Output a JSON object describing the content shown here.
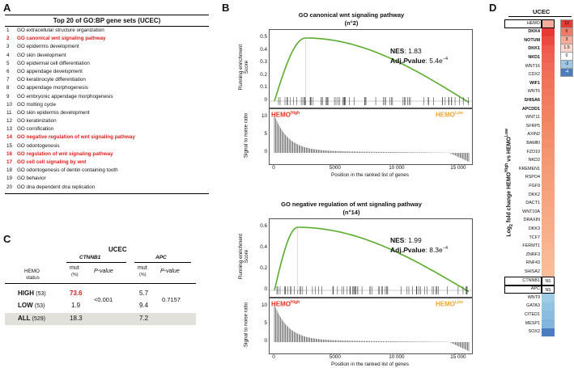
{
  "panel_labels": {
    "a": "A",
    "b": "B",
    "c": "C",
    "d": "D"
  },
  "panelA": {
    "title": "Top 20 of GO:BP gene sets (UCEC)",
    "items": [
      {
        "n": "1",
        "label": "GO extracellular structure organization",
        "hl": false
      },
      {
        "n": "2",
        "label": "GO canonical wnt signaling pathway",
        "hl": true
      },
      {
        "n": "3",
        "label": "GO epidermis development",
        "hl": false
      },
      {
        "n": "4",
        "label": "GO skin development",
        "hl": false
      },
      {
        "n": "5",
        "label": "GO epidermal cell differentiation",
        "hl": false
      },
      {
        "n": "6",
        "label": "GO appendage development",
        "hl": false
      },
      {
        "n": "7",
        "label": "GO keratinocyte differentiation",
        "hl": false
      },
      {
        "n": "8",
        "label": "GO appendage morphogenesis",
        "hl": false
      },
      {
        "n": "9",
        "label": "GO embryonic appendage morphogenesis",
        "hl": false
      },
      {
        "n": "10",
        "label": "GO molting cycle",
        "hl": false
      },
      {
        "n": "11",
        "label": "GO skin epidermis development",
        "hl": false
      },
      {
        "n": "12",
        "label": "GO keratinization",
        "hl": false
      },
      {
        "n": "13",
        "label": "GO cornification",
        "hl": false
      },
      {
        "n": "14",
        "label": "GO negative regulation of wnt signaling pathway",
        "hl": true
      },
      {
        "n": "15",
        "label": "GO odontogenesis",
        "hl": false
      },
      {
        "n": "16",
        "label": "GO regulation of wnt signaling pathway",
        "hl": true
      },
      {
        "n": "17",
        "label": "GO cell cell signaling by wnt",
        "hl": true
      },
      {
        "n": "18",
        "label": "GO odontogenesis of dentin containing tooth",
        "hl": false
      },
      {
        "n": "19",
        "label": "GO behavior",
        "hl": false
      },
      {
        "n": "20",
        "label": "GO dna dependent dna replication",
        "hl": false
      }
    ]
  },
  "panelC": {
    "title": "UCEC",
    "gene1": "CTNNB1",
    "gene2": "APC",
    "status_l1": "HEMO",
    "status_l2": "status",
    "mut": "mut",
    "pct": "(%)",
    "pvalue": "P-value",
    "rows": [
      {
        "label": "HIGH",
        "n": "(53)",
        "mut1": "73.6",
        "mut2": "5.7"
      },
      {
        "label": "LOW",
        "n": "(53)",
        "mut1": "1.9",
        "mut2": "9.4"
      },
      {
        "label": "ALL",
        "n": "(529)",
        "mut1": "18.3",
        "mut2": "7.2"
      }
    ],
    "p1": "<0.001",
    "p2": "0.7157"
  },
  "panelB": {
    "ylabel_es": [
      "Running enrichment",
      "Score"
    ],
    "ylabel_snr": "Signal to noise ratio",
    "xlabel": "Position in the ranked list of genes",
    "hemo_high": "HEMO",
    "hemo_low": "HEMO",
    "sup_high": "High",
    "sup_low": "Low",
    "xticks": [
      "0",
      "5000",
      "10 000",
      "15 000"
    ],
    "snr_ticks": [
      "10",
      "5",
      "0"
    ],
    "plots": [
      {
        "title": "GO canonical wnt signaling pathway",
        "subtitle": "(n°2)",
        "nes_label": "NES",
        "nes": "1.83",
        "adj_label": "Adj.",
        "p_italic": "P",
        "adj_tail": "value",
        "adj_p": "5.4e",
        "adj_exp": "−4",
        "es_ticks": [
          "0.5",
          "0.4",
          "0.3",
          "0.2",
          "0.1",
          "0"
        ]
      },
      {
        "title": "GO negative regulation of wnt signaling pathway",
        "subtitle": "(n°14)",
        "nes_label": "NES",
        "nes": "1.99",
        "adj_label": "Adj.",
        "p_italic": "P",
        "adj_tail": "value",
        "adj_p": "8.3e",
        "adj_exp": "−4",
        "es_ticks": [
          "0.6",
          "0.4",
          "0.2",
          "0"
        ]
      }
    ]
  },
  "panelD": {
    "title": "UCEC",
    "ylabel_pre": "Log",
    "ylabel_sub": "2",
    "ylabel_mid": " fold change HEMO",
    "ylabel_sup": "High",
    "ylabel_post": " vs HEMO",
    "ylabel_sup2": "Low",
    "genes": [
      {
        "name": "HEMO",
        "bold": false,
        "color": "#f4ad9c",
        "ns": "",
        "boxed": true
      },
      {
        "name": "DKK4",
        "bold": true,
        "color": "#e83a35",
        "ns": "",
        "boxed": false
      },
      {
        "name": "NOTUM",
        "bold": true,
        "color": "#eb4a40",
        "ns": "",
        "boxed": false
      },
      {
        "name": "DKK1",
        "bold": true,
        "color": "#ee5a4c",
        "ns": "",
        "boxed": false
      },
      {
        "name": "NKD1",
        "bold": true,
        "color": "#ef6252",
        "ns": "",
        "boxed": false
      },
      {
        "name": "WNT16",
        "bold": false,
        "color": "#f06a58",
        "ns": "",
        "boxed": false
      },
      {
        "name": "CDX2",
        "bold": false,
        "color": "#f07059",
        "ns": "",
        "boxed": false
      },
      {
        "name": "WIF1",
        "bold": true,
        "color": "#f07459",
        "ns": "",
        "boxed": false
      },
      {
        "name": "WNT6",
        "bold": false,
        "color": "#f1785c",
        "ns": "",
        "boxed": false
      },
      {
        "name": "SHISA6",
        "bold": true,
        "color": "#f17c5f",
        "ns": "",
        "boxed": false
      },
      {
        "name": "APCDD1",
        "bold": true,
        "color": "#f28062",
        "ns": "",
        "boxed": false
      },
      {
        "name": "WNT11",
        "bold": false,
        "color": "#f28464",
        "ns": "",
        "boxed": false
      },
      {
        "name": "SFRP5",
        "bold": false,
        "color": "#f38867",
        "ns": "",
        "boxed": false
      },
      {
        "name": "AXIN2",
        "bold": false,
        "color": "#f38c6a",
        "ns": "",
        "boxed": false
      },
      {
        "name": "BAMBI",
        "bold": false,
        "color": "#f4906d",
        "ns": "",
        "boxed": false
      },
      {
        "name": "FZD10",
        "bold": false,
        "color": "#f49470",
        "ns": "",
        "boxed": false
      },
      {
        "name": "NKD2",
        "bold": false,
        "color": "#f49773",
        "ns": "",
        "boxed": false
      },
      {
        "name": "KREMEN1",
        "bold": false,
        "color": "#f59a76",
        "ns": "",
        "boxed": false
      },
      {
        "name": "RSPO4",
        "bold": false,
        "color": "#f59d78",
        "ns": "",
        "boxed": false
      },
      {
        "name": "FGF9",
        "bold": false,
        "color": "#f5a07b",
        "ns": "",
        "boxed": false
      },
      {
        "name": "DKK2",
        "bold": false,
        "color": "#f6a37e",
        "ns": "",
        "boxed": false
      },
      {
        "name": "DACT1",
        "bold": false,
        "color": "#f6a681",
        "ns": "",
        "boxed": false
      },
      {
        "name": "WNT10A",
        "bold": false,
        "color": "#f6a984",
        "ns": "",
        "boxed": false
      },
      {
        "name": "DRAXIN",
        "bold": false,
        "color": "#f7ac87",
        "ns": "",
        "boxed": false
      },
      {
        "name": "DKK3",
        "bold": false,
        "color": "#f7af8a",
        "ns": "",
        "boxed": false
      },
      {
        "name": "TCF7",
        "bold": false,
        "color": "#f7b28d",
        "ns": "",
        "boxed": false
      },
      {
        "name": "FERMT1",
        "bold": false,
        "color": "#f8b590",
        "ns": "",
        "boxed": false
      },
      {
        "name": "ZNRF3",
        "bold": false,
        "color": "#f8b893",
        "ns": "",
        "boxed": false
      },
      {
        "name": "RNF43",
        "bold": false,
        "color": "#f8bb96",
        "ns": "",
        "boxed": false
      },
      {
        "name": "SHISA2",
        "bold": false,
        "color": "#f9be99",
        "ns": "",
        "boxed": false
      },
      {
        "name": "CTNNB1",
        "bold": false,
        "color": "#ffffff",
        "ns": "NS",
        "boxed": true
      },
      {
        "name": "APC",
        "bold": false,
        "color": "#ffffff",
        "ns": "NS",
        "boxed": true
      },
      {
        "name": "WNT9",
        "bold": false,
        "color": "#9ecbe6",
        "ns": "",
        "boxed": false
      },
      {
        "name": "GATA3",
        "bold": false,
        "color": "#93c3e2",
        "ns": "",
        "boxed": false
      },
      {
        "name": "CITED1",
        "bold": false,
        "color": "#8cbde0",
        "ns": "",
        "boxed": false
      },
      {
        "name": "MESP1",
        "bold": false,
        "color": "#82b5dc",
        "ns": "",
        "boxed": false
      },
      {
        "name": "SOX2",
        "bold": false,
        "color": "#4a7cbf",
        "ns": "",
        "boxed": false
      }
    ],
    "legend": [
      {
        "label": "12",
        "color": "#e83a35"
      },
      {
        "label": "6",
        "color": "#f07a68"
      },
      {
        "label": "3",
        "color": "#f6ab98"
      },
      {
        "label": "1.5",
        "color": "#fbd7cd"
      },
      {
        "label": "0",
        "color": "#ffffff"
      },
      {
        "label": "-2",
        "color": "#9ec6e3"
      },
      {
        "label": "-4",
        "color": "#4a7cbf"
      }
    ]
  }
}
